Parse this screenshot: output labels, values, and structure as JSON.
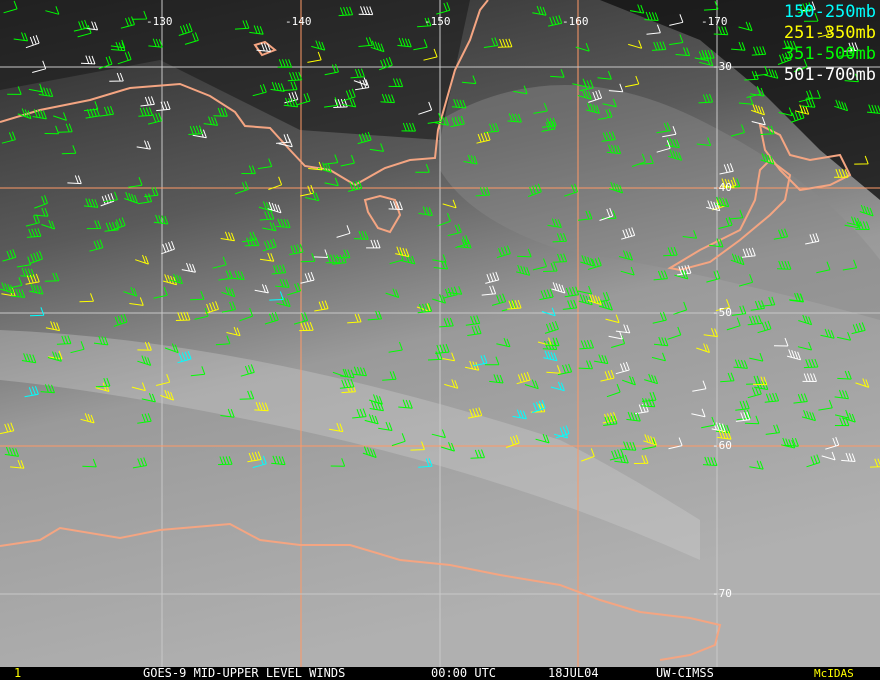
{
  "legend": [
    {
      "label": "150-250mb",
      "color": "#00ffff"
    },
    {
      "label": "251-350mb",
      "color": "#ffff00"
    },
    {
      "label": "351-500mb",
      "color": "#00ff00"
    },
    {
      "label": "501-700mb",
      "color": "#ffffff"
    }
  ],
  "longitude_labels": [
    "-130",
    "-140",
    "-150",
    "-160",
    "-170"
  ],
  "latitude_labels": [
    "-30",
    "-40",
    "-50",
    "-60",
    "-70"
  ],
  "colors": {
    "coastline": "#f4a582",
    "grid": "#ff9966",
    "latlon_grid": "#c8c8c8"
  },
  "footer": {
    "frame": "1",
    "title": "GOES-9 MID-UPPER LEVEL WINDS",
    "time": "00:00 UTC",
    "date": "18JUL04",
    "source": "UW-CIMSS",
    "brand": "McIDAS"
  }
}
